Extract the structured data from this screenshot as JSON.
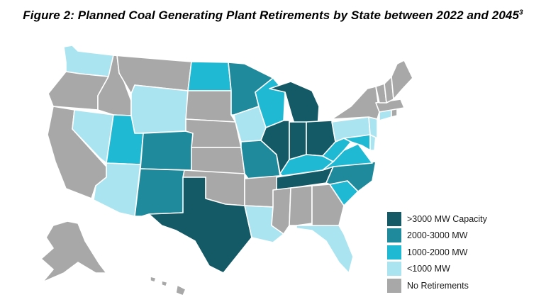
{
  "figure": {
    "title": "Figure 2: Planned Coal Generating Plant Retirements by State between 2022 and 2045",
    "title_superscript": "3"
  },
  "legend": [
    {
      "label": ">3000 MW Capacity",
      "category": "over_3000",
      "color": "#145a66"
    },
    {
      "label": "2000-3000 MW",
      "category": "2000_3000",
      "color": "#1e8a9c"
    },
    {
      "label": "1000-2000 MW",
      "category": "1000_2000",
      "color": "#20b9d4"
    },
    {
      "label": "<1000 MW",
      "category": "under_1000",
      "color": "#a9e4f0"
    },
    {
      "label": "No Retirements",
      "category": "none",
      "color": "#a8a8a8"
    }
  ],
  "states": {
    "WA": "under_1000",
    "OR": "none",
    "CA": "none",
    "NV": "under_1000",
    "ID": "none",
    "MT": "none",
    "WY": "under_1000",
    "UT": "1000_2000",
    "AZ": "under_1000",
    "CO": "2000_3000",
    "NM": "2000_3000",
    "ND": "1000_2000",
    "SD": "none",
    "NE": "none",
    "KS": "none",
    "OK": "none",
    "TX": "over_3000",
    "MN": "2000_3000",
    "IA": "under_1000",
    "MO": "2000_3000",
    "AR": "none",
    "LA": "under_1000",
    "WI": "1000_2000",
    "IL": "over_3000",
    "MI": "over_3000",
    "IN": "over_3000",
    "OH": "over_3000",
    "KY": "1000_2000",
    "TN": "over_3000",
    "MS": "none",
    "AL": "none",
    "GA": "none",
    "FL": "under_1000",
    "SC": "1000_2000",
    "NC": "2000_3000",
    "VA": "1000_2000",
    "WV": "1000_2000",
    "MD": "1000_2000",
    "DE": "under_1000",
    "PA": "under_1000",
    "NJ": "under_1000",
    "NY": "none",
    "CT": "under_1000",
    "RI": "none",
    "MA": "none",
    "VT": "none",
    "NH": "none",
    "ME": "none",
    "AK": "none",
    "HI": "none"
  }
}
